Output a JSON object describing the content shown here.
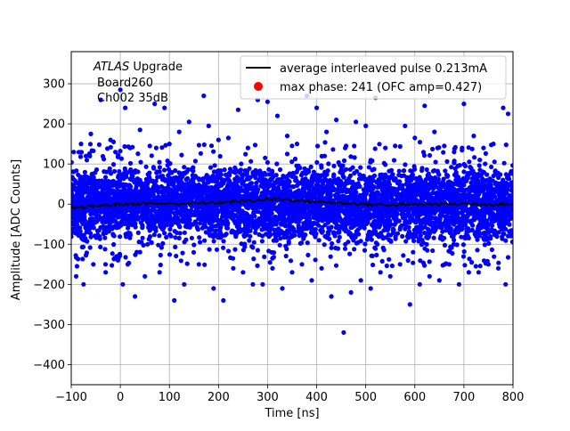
{
  "chart_data": {
    "type": "scatter",
    "title": "",
    "xlabel": "Time [ns]",
    "ylabel": "Amplitude [ADC Counts]",
    "xlim": [
      -100,
      800
    ],
    "ylim": [
      -450,
      380
    ],
    "xticks": [
      -100,
      0,
      100,
      200,
      300,
      400,
      500,
      600,
      700,
      800
    ],
    "yticks": [
      -400,
      -300,
      -200,
      -100,
      0,
      100,
      200,
      300
    ],
    "grid": true,
    "legend_position": "top-right",
    "annotation": {
      "line1_italic": "ATLAS",
      "line1_rest": " Upgrade",
      "line2": "Board260",
      "line3": "Ch002 35dB"
    },
    "series": [
      {
        "name": "average interleaved pulse 0.213mA",
        "kind": "line",
        "color": "#000000",
        "x": [
          -100,
          -50,
          0,
          50,
          100,
          150,
          200,
          250,
          300,
          325,
          350,
          400,
          450,
          500,
          550,
          600,
          650,
          700,
          750,
          800
        ],
        "y": [
          -10,
          -5,
          0,
          2,
          1,
          2,
          4,
          8,
          12,
          13,
          10,
          6,
          3,
          0,
          -2,
          -1,
          0,
          1,
          0,
          0
        ]
      },
      {
        "name": "max phase: 241 (OFC amp=0.427)",
        "kind": "marker",
        "color": "#ff0000",
        "x": [],
        "y": []
      },
      {
        "name": "",
        "kind": "scatter",
        "color": "#0000ff",
        "band_amplitude": 85,
        "outliers": {
          "x": [
            -95,
            -80,
            -70,
            -60,
            -40,
            -20,
            -10,
            0,
            10,
            20,
            40,
            60,
            70,
            90,
            100,
            120,
            140,
            170,
            180,
            200,
            220,
            240,
            260,
            280,
            300,
            320,
            340,
            360,
            380,
            400,
            420,
            440,
            460,
            480,
            500,
            520,
            540,
            560,
            580,
            600,
            620,
            640,
            660,
            680,
            700,
            720,
            740,
            760,
            780,
            790,
            -90,
            -75,
            -55,
            -30,
            -5,
            5,
            15,
            30,
            50,
            80,
            110,
            130,
            160,
            190,
            210,
            230,
            250,
            270,
            290,
            310,
            330,
            350,
            370,
            390,
            410,
            430,
            455,
            470,
            490,
            510,
            530,
            550,
            570,
            590,
            610,
            630,
            650,
            670,
            690,
            710,
            730,
            750,
            770,
            785
          ],
          "y": [
            130,
            150,
            120,
            175,
            260,
            160,
            130,
            285,
            240,
            140,
            185,
            145,
            250,
            240,
            150,
            180,
            205,
            270,
            195,
            160,
            165,
            235,
            140,
            260,
            255,
            220,
            170,
            150,
            270,
            240,
            180,
            210,
            145,
            205,
            195,
            265,
            140,
            145,
            195,
            165,
            245,
            180,
            145,
            130,
            250,
            170,
            140,
            150,
            240,
            225,
            -180,
            -200,
            -150,
            -170,
            -140,
            -200,
            -150,
            -230,
            -180,
            -170,
            -240,
            -200,
            -150,
            -210,
            -240,
            -160,
            -170,
            -200,
            -200,
            -160,
            -210,
            -170,
            -150,
            -190,
            -160,
            -230,
            -320,
            -220,
            -190,
            -210,
            -170,
            -180,
            -150,
            -250,
            -200,
            -180,
            -190,
            -150,
            -200,
            -170,
            -170,
            -150,
            -160,
            -200
          ]
        }
      }
    ]
  }
}
